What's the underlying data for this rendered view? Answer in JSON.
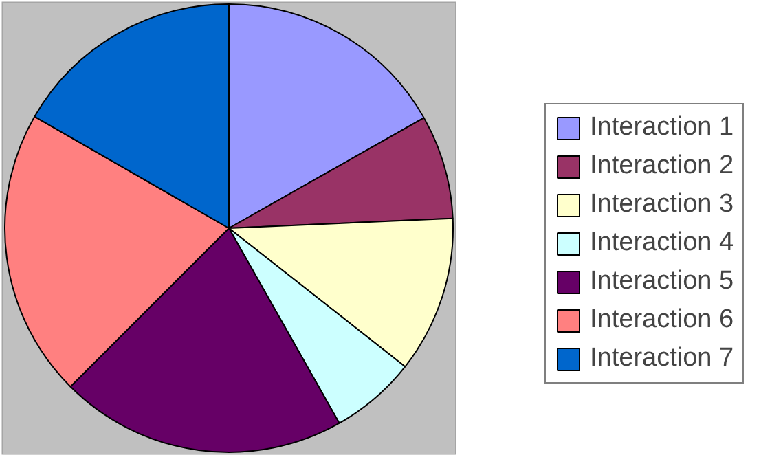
{
  "chart_data": {
    "type": "pie",
    "categories": [
      "Interaction 1",
      "Interaction 2",
      "Interaction 3",
      "Interaction 4",
      "Interaction 5",
      "Interaction 6",
      "Interaction 7"
    ],
    "values": [
      16.8,
      7.5,
      11.3,
      6.2,
      20.7,
      20.8,
      16.7
    ],
    "colors": [
      "#9999ff",
      "#993366",
      "#ffffcc",
      "#ccffff",
      "#660066",
      "#ff8080",
      "#0066cc"
    ],
    "legend": "right"
  }
}
